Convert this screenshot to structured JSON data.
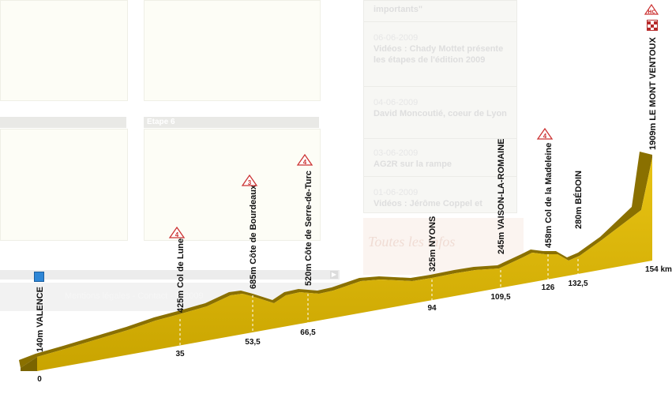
{
  "background_page": {
    "stage_heading": "Etape 6",
    "news_items": [
      {
        "date": "",
        "title": "importants\""
      },
      {
        "date": "06-06-2009",
        "title": "Vidéos : Chady Mottet présente les étapes de l'édition 2009"
      },
      {
        "date": "04-06-2009",
        "title": "David Moncoutié, coeur de Lyon"
      },
      {
        "date": "03-06-2009",
        "title": "AG2R sur la rampe"
      },
      {
        "date": "01-06-2009",
        "title": "Vidéos : Jérôme Coppel et"
      }
    ],
    "promo_text": "Toutes les infos",
    "footer_text": "Mentions légales - Contact - © 2009"
  },
  "profile": {
    "start_flag_icon": "start-flag-icon",
    "finish_icon": "finish-flag-icon",
    "fill_color": "#d9b20a",
    "top_color": "#8a7000",
    "points": [
      {
        "label": "140m VALENCE",
        "km": "0",
        "km_value": 0,
        "altitude": 140,
        "category": ""
      },
      {
        "label": "425m Col de Lunel",
        "km": "35",
        "km_value": 35,
        "altitude": 425,
        "category": "4"
      },
      {
        "label": "685m Côte de Bourdeaux",
        "km": "53,5",
        "km_value": 53.5,
        "altitude": 685,
        "category": "3"
      },
      {
        "label": "520m Côte de Serre-de-Turc",
        "km": "66,5",
        "km_value": 66.5,
        "altitude": 520,
        "category": "4"
      },
      {
        "label": "325m NYONS",
        "km": "94",
        "km_value": 94,
        "altitude": 325,
        "category": ""
      },
      {
        "label": "245m VAISON-LA-ROMAINE",
        "km": "109,5",
        "km_value": 109.5,
        "altitude": 245,
        "category": ""
      },
      {
        "label": "458m Col de la Madeleine",
        "km": "126",
        "km_value": 126,
        "altitude": 458,
        "category": "4"
      },
      {
        "label": "280m BÉDOIN",
        "km": "132,5",
        "km_value": 132.5,
        "altitude": 280,
        "category": ""
      },
      {
        "label": "1909m LE MONT VENTOUX",
        "km": "154 km",
        "km_value": 154,
        "altitude": 1909,
        "category": "HC"
      }
    ]
  }
}
